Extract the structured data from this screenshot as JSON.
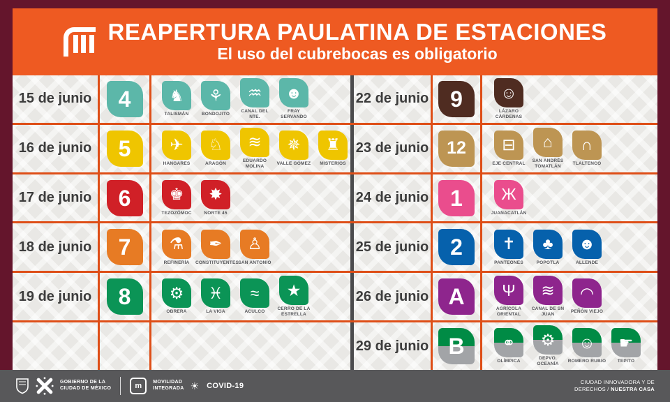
{
  "header": {
    "title": "REAPERTURA PAULATINA DE ESTACIONES",
    "subtitle": "El uso del cubrebocas es obligatorio"
  },
  "colors": {
    "frame": "#64152C",
    "header_bg": "#EE5A22",
    "grid_orange": "#DE4E17",
    "grid_dark": "#4B4B4D",
    "footer_bg": "#58585A",
    "pattern_bg": "#E9E8E5"
  },
  "schedule": {
    "rows": [
      {
        "left": {
          "date": "15 de junio",
          "line": {
            "label": "4",
            "color": "#5CB7A9"
          },
          "stations": [
            {
              "name": "TALISMÁN",
              "icon": "♞"
            },
            {
              "name": "BONDOJITO",
              "icon": "⚘"
            },
            {
              "name": "CANAL DEL NTE.",
              "icon": "♒"
            },
            {
              "name": "FRAY SERVANDO",
              "icon": "☻"
            }
          ]
        },
        "right": {
          "date": "22 de junio",
          "line": {
            "label": "9",
            "color": "#4F2C21"
          },
          "stations": [
            {
              "name": "LÁZARO CÁRDENAS",
              "icon": "☺"
            }
          ]
        }
      },
      {
        "left": {
          "date": "16 de junio",
          "line": {
            "label": "5",
            "color": "#EFC500"
          },
          "stations": [
            {
              "name": "HANGARES",
              "icon": "✈"
            },
            {
              "name": "ARAGÓN",
              "icon": "♘"
            },
            {
              "name": "EDUARDO MOLINA",
              "icon": "≋"
            },
            {
              "name": "VALLE GÓMEZ",
              "icon": "✵"
            },
            {
              "name": "MISTERIOS",
              "icon": "♜"
            }
          ]
        },
        "right": {
          "date": "23 de junio",
          "line": {
            "label": "12",
            "color": "#BD9553"
          },
          "stations": [
            {
              "name": "EJE CENTRAL",
              "icon": "⊟"
            },
            {
              "name": "SAN ANDRÉS TOMATLÁN",
              "icon": "⌂"
            },
            {
              "name": "TLALTENCO",
              "icon": "∩"
            }
          ]
        }
      },
      {
        "left": {
          "date": "17 de junio",
          "line": {
            "label": "6",
            "color": "#D02027"
          },
          "stations": [
            {
              "name": "TEZOZÓMOC",
              "icon": "♚"
            },
            {
              "name": "NORTE 45",
              "icon": "✸"
            }
          ]
        },
        "right": {
          "date": "24 de junio",
          "line": {
            "label": "1",
            "color": "#EA4D8D"
          },
          "stations": [
            {
              "name": "JUANACATLÁN",
              "icon": "Ж"
            }
          ]
        }
      },
      {
        "left": {
          "date": "18 de junio",
          "line": {
            "label": "7",
            "color": "#E77B24"
          },
          "stations": [
            {
              "name": "REFINERÍA",
              "icon": "⚗"
            },
            {
              "name": "CONSTITUYENTES",
              "icon": "✒"
            },
            {
              "name": "SAN ANTONIO",
              "icon": "♙"
            }
          ]
        },
        "right": {
          "date": "25 de junio",
          "line": {
            "label": "2",
            "color": "#0661AC"
          },
          "stations": [
            {
              "name": "PANTEONES",
              "icon": "✝"
            },
            {
              "name": "POPOTLA",
              "icon": "♣"
            },
            {
              "name": "ALLENDE",
              "icon": "☻"
            }
          ]
        }
      },
      {
        "left": {
          "date": "19 de junio",
          "line": {
            "label": "8",
            "color": "#0B9456"
          },
          "stations": [
            {
              "name": "OBRERA",
              "icon": "⚙"
            },
            {
              "name": "LA VIGA",
              "icon": "♓"
            },
            {
              "name": "ACULCO",
              "icon": "≈"
            },
            {
              "name": "CERRO DE LA ESTRELLA",
              "icon": "★"
            }
          ]
        },
        "right": {
          "date": "26 de junio",
          "line": {
            "label": "A",
            "color": "#8E258D"
          },
          "stations": [
            {
              "name": "AGRÍCOLA ORIENTAL",
              "icon": "Ψ"
            },
            {
              "name": "CANAL DE SN JUAN",
              "icon": "≋"
            },
            {
              "name": "PEÑÓN VIEJO",
              "icon": "◠"
            }
          ]
        }
      },
      {
        "left": null,
        "right": {
          "date": "29 de junio",
          "line": {
            "label": "B",
            "color": "#008B45",
            "color2": "#A2A4A7"
          },
          "stations": [
            {
              "name": "OLÍMPICA",
              "icon": "⚭"
            },
            {
              "name": "DEPVO. OCEANÍA",
              "icon": "⚙"
            },
            {
              "name": "ROMERO RUBIO",
              "icon": "☺"
            },
            {
              "name": "TEPITO",
              "icon": "☛"
            }
          ]
        }
      }
    ]
  },
  "footer": {
    "gov_line1": "GOBIERNO DE LA",
    "gov_line2": "CIUDAD DE MÉXICO",
    "mob_line1": "MOVILIDAD",
    "mob_line2": "INTEGRADA",
    "mob_logo_letter": "m",
    "covid_label": "COVID-19",
    "right_line1": "CIUDAD INNOVADORA Y DE",
    "right_line2_pre": "DERECHOS / ",
    "right_line2_bold": "NUESTRA CASA"
  }
}
